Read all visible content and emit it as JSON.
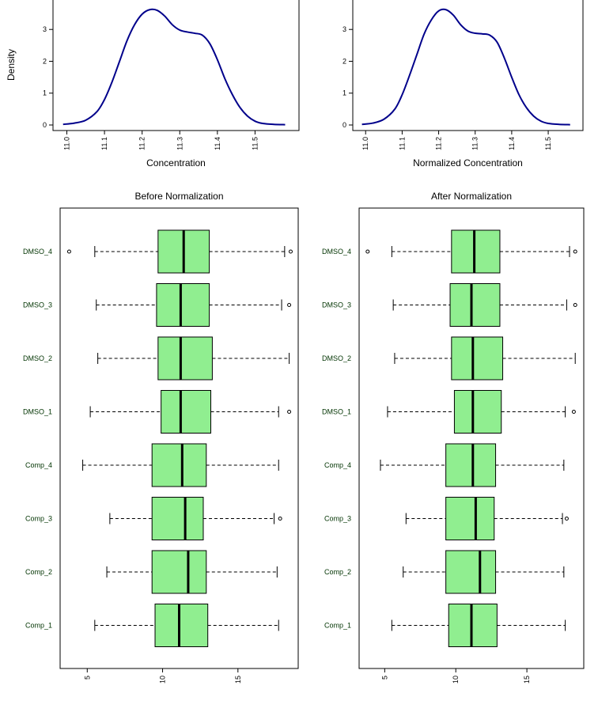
{
  "figure": {
    "density_ylabel": "Density"
  },
  "chart_data": [
    {
      "type": "line",
      "panel": "top-left",
      "xlabel": "Concentration",
      "ylabel": "Density",
      "xlim": [
        10.98,
        11.6
      ],
      "ylim": [
        0,
        3.8
      ],
      "xticks": [
        "11.0",
        "11.1",
        "11.2",
        "11.3",
        "11.4",
        "11.5"
      ],
      "yticks": [
        "0",
        "1",
        "2",
        "3"
      ],
      "grid": false,
      "color": "#00008b",
      "series": [
        {
          "x": [
            10.99,
            11.02,
            11.05,
            11.08,
            11.1,
            11.12,
            11.14,
            11.16,
            11.18,
            11.2,
            11.22,
            11.24,
            11.26,
            11.28,
            11.3,
            11.32,
            11.34,
            11.36,
            11.38,
            11.4,
            11.42,
            11.44,
            11.46,
            11.48,
            11.5,
            11.52,
            11.55,
            11.58
          ],
          "y": [
            0.02,
            0.06,
            0.15,
            0.42,
            0.8,
            1.35,
            2.0,
            2.65,
            3.15,
            3.48,
            3.62,
            3.6,
            3.42,
            3.15,
            2.98,
            2.92,
            2.88,
            2.82,
            2.55,
            2.05,
            1.45,
            0.95,
            0.55,
            0.28,
            0.12,
            0.05,
            0.02,
            0.01
          ]
        }
      ]
    },
    {
      "type": "line",
      "panel": "top-right",
      "xlabel": "Normalized Concentration",
      "ylabel": "",
      "xlim": [
        10.98,
        11.58
      ],
      "ylim": [
        0,
        3.8
      ],
      "xticks": [
        "11.0",
        "11.1",
        "11.2",
        "11.3",
        "11.4",
        "11.5"
      ],
      "yticks": [
        "0",
        "1",
        "2",
        "3"
      ],
      "grid": false,
      "color": "#00008b",
      "series": [
        {
          "x": [
            10.99,
            11.02,
            11.05,
            11.08,
            11.1,
            11.12,
            11.14,
            11.16,
            11.18,
            11.2,
            11.22,
            11.24,
            11.26,
            11.28,
            11.3,
            11.32,
            11.34,
            11.36,
            11.38,
            11.4,
            11.42,
            11.44,
            11.46,
            11.48,
            11.5,
            11.53,
            11.56
          ],
          "y": [
            0.02,
            0.06,
            0.18,
            0.5,
            0.95,
            1.55,
            2.2,
            2.85,
            3.3,
            3.58,
            3.62,
            3.45,
            3.15,
            2.95,
            2.88,
            2.86,
            2.82,
            2.6,
            2.1,
            1.5,
            0.95,
            0.55,
            0.28,
            0.12,
            0.05,
            0.02,
            0.01
          ]
        }
      ]
    },
    {
      "type": "box",
      "panel": "bottom-left",
      "title": "Before Normalization",
      "orientation": "horizontal",
      "xlim": [
        3.2,
        19.0
      ],
      "xticks": [
        "5",
        "10",
        "15"
      ],
      "fill": "#90ee90",
      "categories": [
        "DMSO_4",
        "DMSO_3",
        "DMSO_2",
        "DMSO_1",
        "Comp_4",
        "Comp_3",
        "Comp_2",
        "Comp_1"
      ],
      "boxes": [
        {
          "whisker_low": 5.5,
          "q1": 9.7,
          "median": 11.4,
          "q3": 13.1,
          "whisker_high": 18.1,
          "outliers": [
            3.8,
            18.5
          ]
        },
        {
          "whisker_low": 5.6,
          "q1": 9.6,
          "median": 11.2,
          "q3": 13.1,
          "whisker_high": 17.9,
          "outliers": [
            18.4
          ]
        },
        {
          "whisker_low": 5.7,
          "q1": 9.7,
          "median": 11.2,
          "q3": 13.3,
          "whisker_high": 18.4,
          "outliers": []
        },
        {
          "whisker_low": 5.2,
          "q1": 9.9,
          "median": 11.2,
          "q3": 13.2,
          "whisker_high": 17.7,
          "outliers": [
            18.4
          ]
        },
        {
          "whisker_low": 4.7,
          "q1": 9.3,
          "median": 11.3,
          "q3": 12.9,
          "whisker_high": 17.7,
          "outliers": []
        },
        {
          "whisker_low": 6.5,
          "q1": 9.3,
          "median": 11.5,
          "q3": 12.7,
          "whisker_high": 17.4,
          "outliers": [
            17.8
          ]
        },
        {
          "whisker_low": 6.3,
          "q1": 9.3,
          "median": 11.7,
          "q3": 12.9,
          "whisker_high": 17.6,
          "outliers": []
        },
        {
          "whisker_low": 5.5,
          "q1": 9.5,
          "median": 11.1,
          "q3": 13.0,
          "whisker_high": 17.7,
          "outliers": []
        }
      ]
    },
    {
      "type": "box",
      "panel": "bottom-right",
      "title": "After Normalization",
      "orientation": "horizontal",
      "xlim": [
        3.2,
        19.0
      ],
      "xticks": [
        "5",
        "10",
        "15"
      ],
      "fill": "#90ee90",
      "categories": [
        "DMSO_4",
        "DMSO_3",
        "DMSO_2",
        "DMSO_1",
        "Comp_4",
        "Comp_3",
        "Comp_2",
        "Comp_1"
      ],
      "boxes": [
        {
          "whisker_low": 5.5,
          "q1": 9.7,
          "median": 11.3,
          "q3": 13.1,
          "whisker_high": 18.0,
          "outliers": [
            3.8,
            18.4
          ]
        },
        {
          "whisker_low": 5.6,
          "q1": 9.6,
          "median": 11.1,
          "q3": 13.1,
          "whisker_high": 17.8,
          "outliers": [
            18.4
          ]
        },
        {
          "whisker_low": 5.7,
          "q1": 9.7,
          "median": 11.2,
          "q3": 13.3,
          "whisker_high": 18.4,
          "outliers": []
        },
        {
          "whisker_low": 5.2,
          "q1": 9.9,
          "median": 11.2,
          "q3": 13.2,
          "whisker_high": 17.7,
          "outliers": [
            18.3
          ]
        },
        {
          "whisker_low": 4.7,
          "q1": 9.3,
          "median": 11.2,
          "q3": 12.8,
          "whisker_high": 17.6,
          "outliers": []
        },
        {
          "whisker_low": 6.5,
          "q1": 9.3,
          "median": 11.4,
          "q3": 12.7,
          "whisker_high": 17.5,
          "outliers": [
            17.8
          ]
        },
        {
          "whisker_low": 6.3,
          "q1": 9.3,
          "median": 11.7,
          "q3": 12.8,
          "whisker_high": 17.6,
          "outliers": []
        },
        {
          "whisker_low": 5.5,
          "q1": 9.5,
          "median": 11.1,
          "q3": 12.9,
          "whisker_high": 17.7,
          "outliers": []
        }
      ]
    }
  ]
}
